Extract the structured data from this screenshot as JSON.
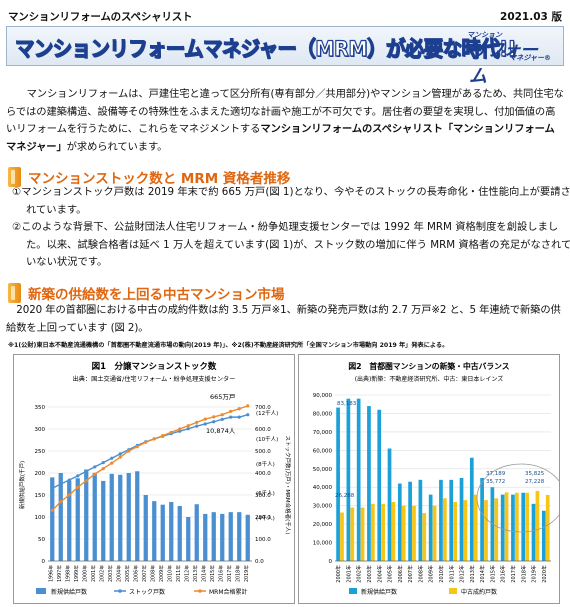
{
  "header": {
    "series": "マンションリフォームのスペシャリスト",
    "edition": "2021.03 版",
    "title": "マンションリフォームマネジャー（MRM）が必要な時代!!",
    "logo_top": "マンション",
    "logo_main": "リフォーム",
    "logo_sub": "マネジャー®"
  },
  "intro": {
    "text1": "マンションリフォームは、戸建住宅と違って区分所有(専有部分／共用部分)やマンション管理があるため、共同住宅ならではの建築構造、設備等その特殊性をふまえた適切な計画や施工が不可欠です。居住者の要望を実現し、付加価値の高いリフォームを行うために、これらをマネジメントする",
    "bold": "マンションリフォームのスペシャリスト「マンションリフォームマネジャー」",
    "text2": "が求められています。"
  },
  "section1": {
    "title": "マンションストック数と MRM 資格者推移",
    "items": [
      "①マンションストック戸数は 2019 年末で約 665 万戸(図 1)となり、今やそのストックの長寿命化・住性能向上が要請されています。",
      "②このような背景下、公益財団法人住宅リフォーム・紛争処理支援センターでは 1992 年 MRM 資格制度を創設しました。以来、試験合格者は延べ 1 万人を超えています(図 1)が、ストック数の増加に伴う MRM 資格者の充足がなされていない状況です。"
    ]
  },
  "section2": {
    "title": "新築の供給数を上回る中古マンション市場",
    "text": "2020 年の首都圏における中古の成約件数は約 3.5 万戸※1、新築の発売戸数は約 2.7 万戸※2 と、5 年連続で新築の供給数を上回っています (図 2)。",
    "note": "※1(公財)東日本不動産流通機構の「首都圏不動産流通市場の動向(2019 年)」、※2(株)不動産経済研究所「全国マンション市場動向 2019 年」発表による。"
  },
  "chart_data": [
    {
      "type": "bar",
      "title": "図1　分譲マンションストック数",
      "subtitle": "出典：国土交通省/住宅リフォーム・紛争処理支援センター",
      "ylabel": "新規供給戸数(千戸)",
      "y2label": "ストック戸数(万戸)・MRM合格者(千人)",
      "ylim": [
        0,
        350
      ],
      "y2lim": [
        0,
        700
      ],
      "categories": [
        "1996年",
        "1997年",
        "1998年",
        "1999年",
        "2000年",
        "2001年",
        "2002年",
        "2003年",
        "2004年",
        "2005年",
        "2006年",
        "2007年",
        "2008年",
        "2009年",
        "2010年",
        "2011年",
        "2012年",
        "2013年",
        "2014年",
        "2015年",
        "2016年",
        "2017年",
        "2018年",
        "2019年"
      ],
      "series": [
        {
          "name": "新規供給戸数",
          "kind": "bar",
          "color": "#4a8fd0",
          "values": [
            190,
            200,
            183,
            188,
            208,
            200,
            182,
            198,
            196,
            200,
            204,
            150,
            136,
            128,
            134,
            125,
            100,
            129,
            107,
            111,
            107,
            111,
            111,
            105
          ]
        },
        {
          "name": "ストック戸数",
          "kind": "line",
          "axis": "right",
          "color": "#4a8fd0",
          "values": [
            330,
            350,
            368,
            387,
            408,
            428,
            447,
            467,
            487,
            506,
            525,
            542,
            555,
            567,
            579,
            590,
            601,
            613,
            623,
            633,
            644,
            654,
            654,
            665
          ]
        },
        {
          "name": "MRM合格累計",
          "kind": "line",
          "axis": "right",
          "color": "#ed8b2f",
          "values": [
            230,
            270,
            300,
            335,
            365,
            395,
            420,
            445,
            472,
            500,
            520,
            540,
            555,
            570,
            585,
            600,
            615,
            630,
            645,
            655,
            665,
            680,
            692,
            705
          ]
        }
      ],
      "annotations": [
        "665万戸",
        "10,874人",
        "(12千人)",
        "(10千人)",
        "(8千人)",
        "(6千人)",
        "(4千人)"
      ]
    },
    {
      "type": "bar",
      "title": "図2　首都圏マンションの新築・中古バランス",
      "subtitle": "(出典)新築：不動産経済研究所、中古：東日本レインズ",
      "ylim": [
        0,
        90000
      ],
      "categories": [
        "2000年",
        "2001年",
        "2002年",
        "2003年",
        "2004年",
        "2005年",
        "2006年",
        "2007年",
        "2008年",
        "2009年",
        "2010年",
        "2011年",
        "2012年",
        "2013年",
        "2014年",
        "2015年",
        "2016年",
        "2017年",
        "2018年",
        "2019年",
        "2020年"
      ],
      "series": [
        {
          "name": "新規供給戸数",
          "color": "#1ba1d8",
          "values": [
            83183,
            88000,
            88000,
            84000,
            82000,
            61000,
            42000,
            43000,
            44000,
            36000,
            44000,
            44000,
            45000,
            56000,
            45000,
            40000,
            36000,
            36000,
            37000,
            31000,
            27228
          ]
        },
        {
          "name": "中古成約戸数",
          "color": "#f5c518",
          "values": [
            26288,
            29000,
            29000,
            31000,
            31000,
            32000,
            30000,
            30000,
            26000,
            30000,
            34000,
            32000,
            33000,
            36000,
            33000,
            34000,
            37189,
            37000,
            37000,
            38000,
            35825
          ]
        }
      ],
      "annotations": [
        "83,183",
        "26,288",
        "37,189",
        "35,772",
        "35,825",
        "27,228"
      ]
    }
  ],
  "legend1": [
    "新規供給戸数",
    "ストック戸数",
    "MRM合格累計"
  ],
  "legend2": [
    "新規供給戸数",
    "中古成約戸数"
  ],
  "colors": {
    "accent": "#e0660f",
    "navy": "#1d3f8f"
  }
}
